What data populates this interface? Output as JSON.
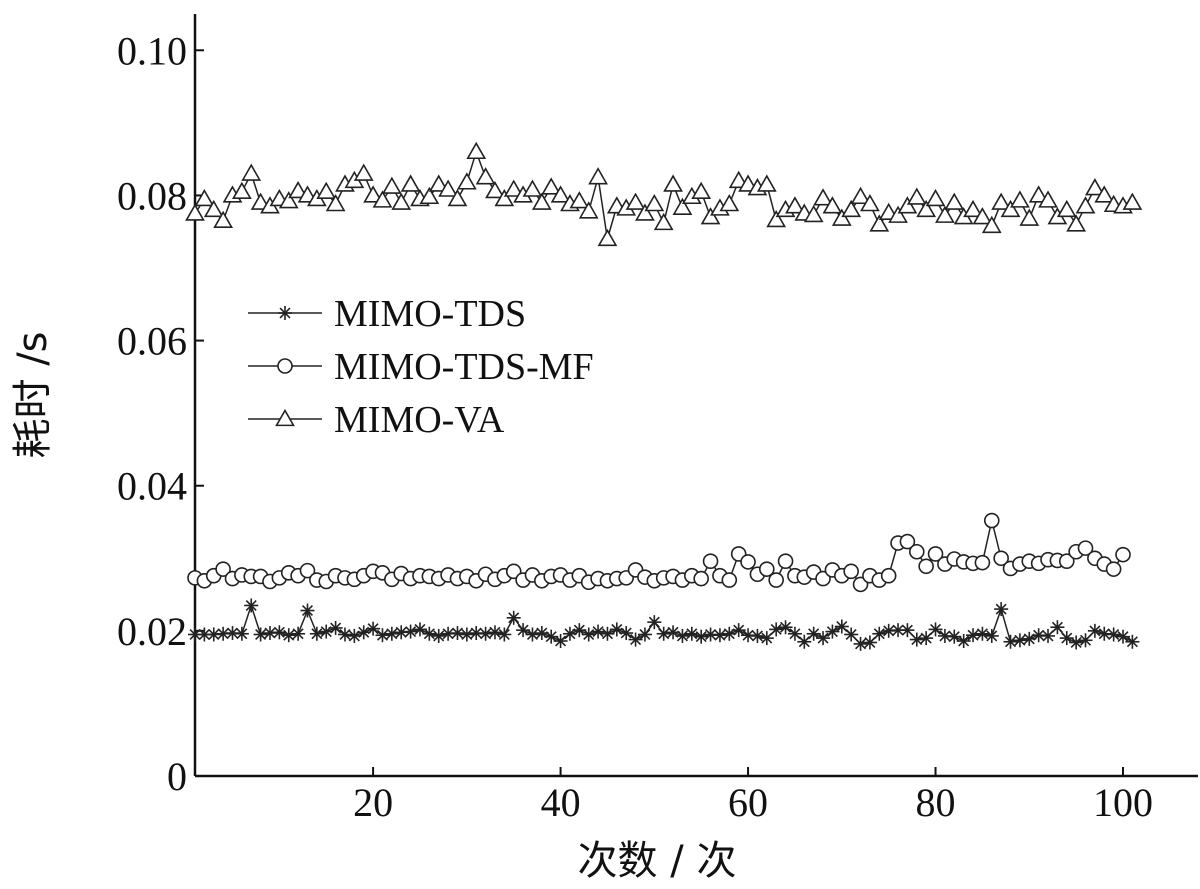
{
  "chart_data": {
    "type": "line",
    "xlabel": "次数 / 次",
    "ylabel": "耗时 /s",
    "xlim": [
      1,
      108
    ],
    "ylim": [
      0,
      0.105
    ],
    "xticks": [
      20,
      40,
      60,
      80,
      100
    ],
    "xtick_labels": [
      "20",
      "40",
      "60",
      "80",
      "100"
    ],
    "yticks": [
      0,
      0.02,
      0.04,
      0.06,
      0.08,
      0.1
    ],
    "ytick_labels": [
      "0",
      "0.02",
      "0.04",
      "0.06",
      "0.08",
      "0.10"
    ],
    "grid": false,
    "legend_position": "middle-left",
    "series": [
      {
        "name": "MIMO-TDS",
        "marker": "asterisk",
        "color": "#222222",
        "values": [
          0.0195,
          0.0195,
          0.0195,
          0.0196,
          0.0197,
          0.0196,
          0.0235,
          0.0195,
          0.0197,
          0.0198,
          0.0194,
          0.0196,
          0.0228,
          0.0196,
          0.0199,
          0.0204,
          0.0195,
          0.0193,
          0.0198,
          0.0203,
          0.0194,
          0.0196,
          0.0198,
          0.0199,
          0.0202,
          0.0196,
          0.0193,
          0.0196,
          0.0197,
          0.0195,
          0.0197,
          0.0196,
          0.0198,
          0.0195,
          0.0218,
          0.0201,
          0.0195,
          0.0197,
          0.0192,
          0.0186,
          0.0196,
          0.0201,
          0.0195,
          0.0199,
          0.0196,
          0.0202,
          0.0197,
          0.0188,
          0.0195,
          0.0212,
          0.0196,
          0.0198,
          0.0193,
          0.0196,
          0.0192,
          0.0195,
          0.0194,
          0.0196,
          0.0201,
          0.0194,
          0.0193,
          0.019,
          0.0202,
          0.0205,
          0.0196,
          0.0185,
          0.0196,
          0.019,
          0.0199,
          0.0206,
          0.0195,
          0.0182,
          0.0184,
          0.0196,
          0.02,
          0.0201,
          0.0201,
          0.0188,
          0.019,
          0.0202,
          0.0193,
          0.0192,
          0.0186,
          0.0194,
          0.0196,
          0.0193,
          0.023,
          0.0185,
          0.0187,
          0.0189,
          0.0194,
          0.0193,
          0.0205,
          0.019,
          0.0184,
          0.0187,
          0.02,
          0.0196,
          0.0195,
          0.0192,
          0.0185
        ]
      },
      {
        "name": "MIMO-TDS-MF",
        "marker": "circle",
        "color": "#222222",
        "values": [
          0.0273,
          0.0269,
          0.0276,
          0.0285,
          0.0272,
          0.0277,
          0.0275,
          0.0275,
          0.0268,
          0.0273,
          0.028,
          0.0276,
          0.0283,
          0.027,
          0.0268,
          0.0276,
          0.0273,
          0.0271,
          0.0276,
          0.0282,
          0.028,
          0.0271,
          0.0279,
          0.0272,
          0.0276,
          0.0275,
          0.0272,
          0.0277,
          0.0272,
          0.0275,
          0.0269,
          0.0278,
          0.0271,
          0.0276,
          0.0282,
          0.027,
          0.0277,
          0.0269,
          0.0275,
          0.0277,
          0.027,
          0.0276,
          0.0267,
          0.0272,
          0.0269,
          0.0272,
          0.0273,
          0.0284,
          0.0274,
          0.0269,
          0.0273,
          0.0275,
          0.027,
          0.0276,
          0.0272,
          0.0296,
          0.0276,
          0.027,
          0.0306,
          0.0295,
          0.0278,
          0.0285,
          0.027,
          0.0296,
          0.0276,
          0.0274,
          0.0281,
          0.0272,
          0.0284,
          0.0276,
          0.0282,
          0.0264,
          0.0276,
          0.027,
          0.0276,
          0.0321,
          0.0323,
          0.0309,
          0.0289,
          0.0306,
          0.0292,
          0.0299,
          0.0295,
          0.0293,
          0.0294,
          0.0352,
          0.03,
          0.0286,
          0.0292,
          0.0296,
          0.0293,
          0.0298,
          0.0297,
          0.0296,
          0.0309,
          0.0314,
          0.03,
          0.0292,
          0.0285,
          0.0305
        ]
      },
      {
        "name": "MIMO-VA",
        "marker": "triangle",
        "color": "#222222",
        "values": [
          0.0775,
          0.0795,
          0.078,
          0.0765,
          0.08,
          0.0805,
          0.083,
          0.079,
          0.0785,
          0.0795,
          0.0792,
          0.0806,
          0.08,
          0.0795,
          0.0805,
          0.0788,
          0.0815,
          0.082,
          0.083,
          0.08,
          0.0793,
          0.0812,
          0.079,
          0.0815,
          0.0795,
          0.0798,
          0.0815,
          0.0808,
          0.0795,
          0.0818,
          0.086,
          0.0825,
          0.0806,
          0.0795,
          0.0808,
          0.08,
          0.0808,
          0.079,
          0.0811,
          0.08,
          0.0788,
          0.0792,
          0.0778,
          0.0825,
          0.074,
          0.0785,
          0.0782,
          0.079,
          0.0775,
          0.0788,
          0.0762,
          0.0815,
          0.0783,
          0.0798,
          0.0805,
          0.077,
          0.0782,
          0.0788,
          0.082,
          0.0815,
          0.081,
          0.0815,
          0.0766,
          0.078,
          0.0785,
          0.0775,
          0.0773,
          0.0796,
          0.0785,
          0.0768,
          0.078,
          0.0798,
          0.0788,
          0.076,
          0.0776,
          0.0772,
          0.0785,
          0.0797,
          0.078,
          0.0795,
          0.0772,
          0.079,
          0.077,
          0.078,
          0.077,
          0.0758,
          0.079,
          0.078,
          0.0793,
          0.0768,
          0.08,
          0.0793,
          0.077,
          0.078,
          0.076,
          0.0785,
          0.081,
          0.08,
          0.0787,
          0.0785,
          0.079
        ]
      }
    ]
  }
}
